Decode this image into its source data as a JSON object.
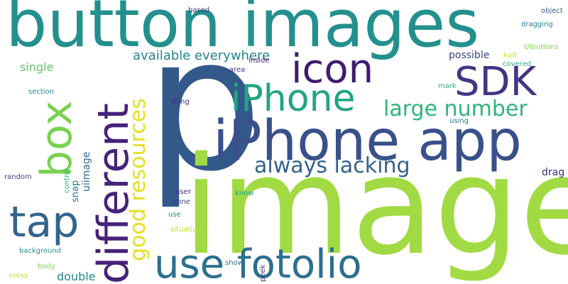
{
  "words": {
    "p": {
      "text": "p",
      "color": "#33598b"
    },
    "image": {
      "text": "image",
      "color": "#a1da42"
    },
    "button_images": {
      "text": "button images",
      "color": "#23908d"
    },
    "iphone_app": {
      "text": "iPhone app",
      "color": "#3a508a"
    },
    "use_fotolio": {
      "text": "use fotolio",
      "color": "#2b6f8e"
    },
    "different": {
      "text": "different",
      "color": "#45227a"
    },
    "box": {
      "text": "box",
      "color": "#7ad151"
    },
    "tap": {
      "text": "tap",
      "color": "#32648d"
    },
    "icon": {
      "text": "icon",
      "color": "#3f1c6f"
    },
    "iphone": {
      "text": "iPhone",
      "color": "#22a485"
    },
    "sdk": {
      "text": "SDK",
      "color": "#453484"
    },
    "large_number": {
      "text": "large number",
      "color": "#2fb47c"
    },
    "always_lacking": {
      "text": "always lacking",
      "color": "#34618d"
    },
    "good_resources": {
      "text": "good resources",
      "color": "#e4df1f"
    },
    "available_everywhere": {
      "text": "available everywhere",
      "color": "#25848e"
    },
    "single": {
      "text": "single",
      "color": "#5ec962"
    },
    "double": {
      "text": "double",
      "color": "#24868e"
    },
    "uiimage": {
      "text": "uiimage",
      "color": "#31688e"
    },
    "drag": {
      "text": "drag",
      "color": "#3e2a70"
    },
    "snap": {
      "text": "snap",
      "color": "#2c728e"
    },
    "possible": {
      "text": "possible",
      "color": "#34428a"
    },
    "based": {
      "text": "based",
      "color": "#453882"
    },
    "object": {
      "text": "object",
      "color": "#39568c"
    },
    "dragging": {
      "text": "dragging",
      "color": "#277f8e"
    },
    "uibuttons": {
      "text": "UIbuttons",
      "color": "#84d44b"
    },
    "half": {
      "text": "half",
      "color": "#c9e020"
    },
    "covered": {
      "text": "covered",
      "color": "#29af7f"
    },
    "inside": {
      "text": "inside",
      "color": "#3f1f71"
    },
    "area": {
      "text": "area",
      "color": "#46317e"
    },
    "section": {
      "text": "section",
      "color": "#25848e"
    },
    "thing": {
      "text": "thing",
      "color": "#462a79"
    },
    "mark": {
      "text": "mark",
      "color": "#26ad81"
    },
    "using": {
      "text": "using",
      "color": "#2a788e"
    },
    "random": {
      "text": "random",
      "color": "#414487"
    },
    "control": {
      "text": "control",
      "color": "#2ab07f"
    },
    "user": {
      "text": "user",
      "color": "#482475"
    },
    "know": {
      "text": "know",
      "color": "#20a386"
    },
    "done": {
      "text": "done",
      "color": "#443a83"
    },
    "use": {
      "text": "use",
      "color": "#277f8e"
    },
    "situation": {
      "text": "situation",
      "color": "#bddf26"
    },
    "background": {
      "text": "background",
      "color": "#21918c"
    },
    "body": {
      "text": "body",
      "color": "#7ad151"
    },
    "cross": {
      "text": "cross",
      "color": "#b5de2b"
    },
    "show": {
      "text": "show",
      "color": "#2c728e"
    },
    "peek": {
      "text": "peek",
      "color": "#443983"
    }
  }
}
